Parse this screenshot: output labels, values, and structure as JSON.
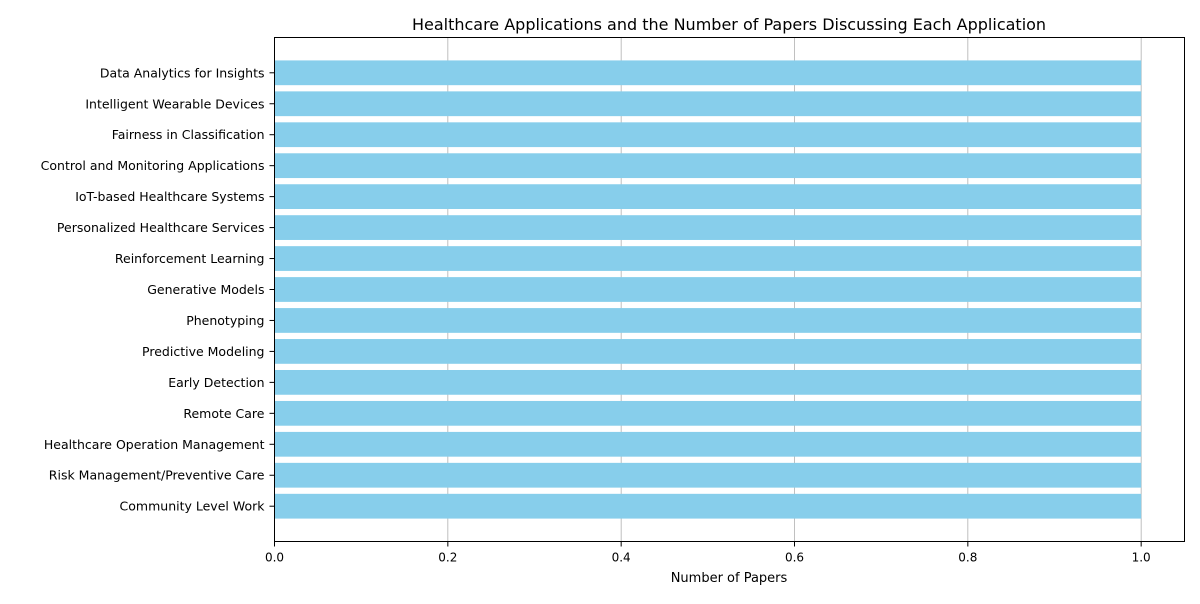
{
  "chart_data": {
    "type": "bar",
    "orientation": "horizontal",
    "title": "Healthcare Applications and the Number of Papers Discussing Each Application",
    "xlabel": "Number of Papers",
    "ylabel": "",
    "xlim": [
      0,
      1.05
    ],
    "xticks": [
      "0.0",
      "0.2",
      "0.4",
      "0.6",
      "0.8",
      "1.0"
    ],
    "grid": "vertical",
    "bar_color": "#87CEEB",
    "categories": [
      "Data Analytics for Insights",
      "Intelligent Wearable Devices",
      "Fairness in Classification",
      "Control and Monitoring Applications",
      "IoT-based Healthcare Systems",
      "Personalized Healthcare Services",
      "Reinforcement Learning",
      "Generative Models",
      "Phenotyping",
      "Predictive Modeling",
      "Early Detection",
      "Remote Care",
      "Healthcare Operation Management",
      "Risk Management/Preventive Care",
      "Community Level Work"
    ],
    "values": [
      1,
      1,
      1,
      1,
      1,
      1,
      1,
      1,
      1,
      1,
      1,
      1,
      1,
      1,
      1
    ]
  }
}
